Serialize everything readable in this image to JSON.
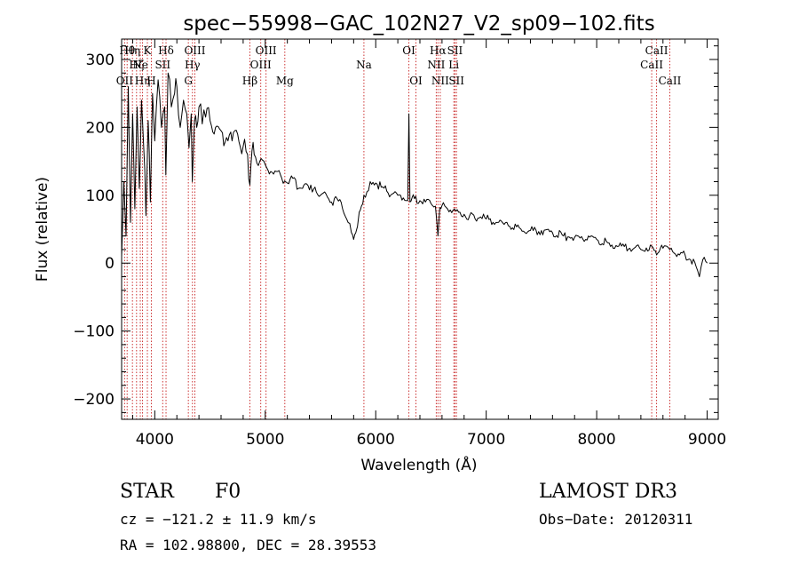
{
  "chart_data": {
    "type": "line",
    "title": "spec−55998−GAC_102N27_V2_sp09−102.fits",
    "xlabel": "Wavelength (Å)",
    "ylabel": "Flux (relative)",
    "xlim": [
      3700,
      9100
    ],
    "ylim": [
      -230,
      330
    ],
    "xticks": [
      4000,
      5000,
      6000,
      7000,
      8000,
      9000
    ],
    "yticks": [
      -200,
      -100,
      0,
      100,
      200,
      300
    ],
    "ytick_labels": [
      "−200",
      "−100",
      "0",
      "100",
      "200",
      "300"
    ],
    "series": [
      {
        "name": "flux",
        "x": [
          3700,
          3720,
          3740,
          3760,
          3780,
          3800,
          3820,
          3840,
          3860,
          3880,
          3900,
          3920,
          3940,
          3960,
          3980,
          4000,
          4030,
          4060,
          4090,
          4100,
          4120,
          4150,
          4180,
          4200,
          4230,
          4260,
          4290,
          4310,
          4330,
          4340,
          4360,
          4380,
          4400,
          4430,
          4460,
          4500,
          4550,
          4600,
          4650,
          4700,
          4750,
          4800,
          4840,
          4861,
          4880,
          4900,
          4950,
          5000,
          5050,
          5100,
          5150,
          5200,
          5250,
          5300,
          5350,
          5400,
          5450,
          5500,
          5550,
          5600,
          5650,
          5700,
          5750,
          5780,
          5800,
          5820,
          5850,
          5893,
          5920,
          5950,
          6000,
          6050,
          6100,
          6150,
          6200,
          6250,
          6290,
          6300,
          6310,
          6330,
          6350,
          6400,
          6450,
          6500,
          6540,
          6563,
          6580,
          6600,
          6650,
          6700,
          6750,
          6800,
          6850,
          6900,
          6950,
          7000,
          7100,
          7200,
          7300,
          7400,
          7500,
          7600,
          7700,
          7800,
          7900,
          8000,
          8100,
          8200,
          8300,
          8400,
          8498,
          8542,
          8600,
          8662,
          8700,
          8750,
          8800,
          8850,
          8900,
          8930,
          8960,
          9000
        ],
        "values": [
          10,
          120,
          40,
          260,
          60,
          220,
          80,
          230,
          110,
          240,
          170,
          70,
          210,
          90,
          250,
          180,
          270,
          200,
          230,
          130,
          280,
          230,
          250,
          260,
          200,
          240,
          220,
          170,
          220,
          120,
          210,
          200,
          230,
          205,
          215,
          210,
          200,
          195,
          185,
          180,
          190,
          172,
          160,
          115,
          165,
          160,
          150,
          145,
          135,
          135,
          125,
          118,
          125,
          110,
          115,
          108,
          112,
          100,
          102,
          90,
          95,
          80,
          60,
          45,
          35,
          45,
          75,
          100,
          105,
          120,
          118,
          112,
          106,
          102,
          100,
          96,
          92,
          220,
          90,
          97,
          95,
          92,
          90,
          88,
          84,
          40,
          82,
          85,
          80,
          78,
          75,
          72,
          70,
          65,
          68,
          65,
          60,
          55,
          52,
          48,
          48,
          45,
          40,
          38,
          35,
          35,
          30,
          25,
          22,
          20,
          25,
          12,
          22,
          20,
          15,
          12,
          12,
          5,
          -5,
          -20,
          5,
          0
        ]
      }
    ],
    "lines": [
      {
        "x": 3727,
        "label": "OII",
        "row": 3
      },
      {
        "x": 3750,
        "label": "Hθ",
        "row": 1
      },
      {
        "x": 3798,
        "label": "Hη",
        "row": 1
      },
      {
        "x": 3835,
        "label": "Hζ",
        "row": 2
      },
      {
        "x": 3869,
        "label": "Ne",
        "row": 2
      },
      {
        "x": 3889,
        "label": "Hη",
        "row": 3
      },
      {
        "x": 3933,
        "label": "K",
        "row": 1
      },
      {
        "x": 3969,
        "label": "H",
        "row": 3
      },
      {
        "x": 4072,
        "label": "SII",
        "row": 2
      },
      {
        "x": 4102,
        "label": "Hδ",
        "row": 1
      },
      {
        "x": 4304,
        "label": "G",
        "row": 3
      },
      {
        "x": 4341,
        "label": "Hγ",
        "row": 2
      },
      {
        "x": 4363,
        "label": "OIII",
        "row": 1
      },
      {
        "x": 4861,
        "label": "Hβ",
        "row": 3
      },
      {
        "x": 4959,
        "label": "OIII",
        "row": 2
      },
      {
        "x": 5007,
        "label": "OIII",
        "row": 1
      },
      {
        "x": 5177,
        "label": "Mg",
        "row": 3
      },
      {
        "x": 5893,
        "label": "Na",
        "row": 2
      },
      {
        "x": 6300,
        "label": "OI",
        "row": 1
      },
      {
        "x": 6364,
        "label": "OI",
        "row": 3
      },
      {
        "x": 6548,
        "label": "NII",
        "row": 2
      },
      {
        "x": 6563,
        "label": "Hα",
        "row": 1
      },
      {
        "x": 6584,
        "label": "NII",
        "row": 3
      },
      {
        "x": 6707,
        "label": "Li",
        "row": 2
      },
      {
        "x": 6717,
        "label": "SII",
        "row": 1
      },
      {
        "x": 6731,
        "label": "SII",
        "row": 3
      },
      {
        "x": 8498,
        "label": "CaII",
        "row": 2
      },
      {
        "x": 8542,
        "label": "CaII",
        "row": 1
      },
      {
        "x": 8662,
        "label": "CaII",
        "row": 3
      }
    ],
    "line_color": "#cc3333"
  },
  "info": {
    "object_class": "STAR",
    "subclass": "F0",
    "survey": "LAMOST DR3",
    "velocity": "cz = −121.2 ± 11.9 km/s",
    "obs_date": "Obs−Date: 20120311",
    "coords": "RA = 102.98800, DEC =  28.39553"
  }
}
